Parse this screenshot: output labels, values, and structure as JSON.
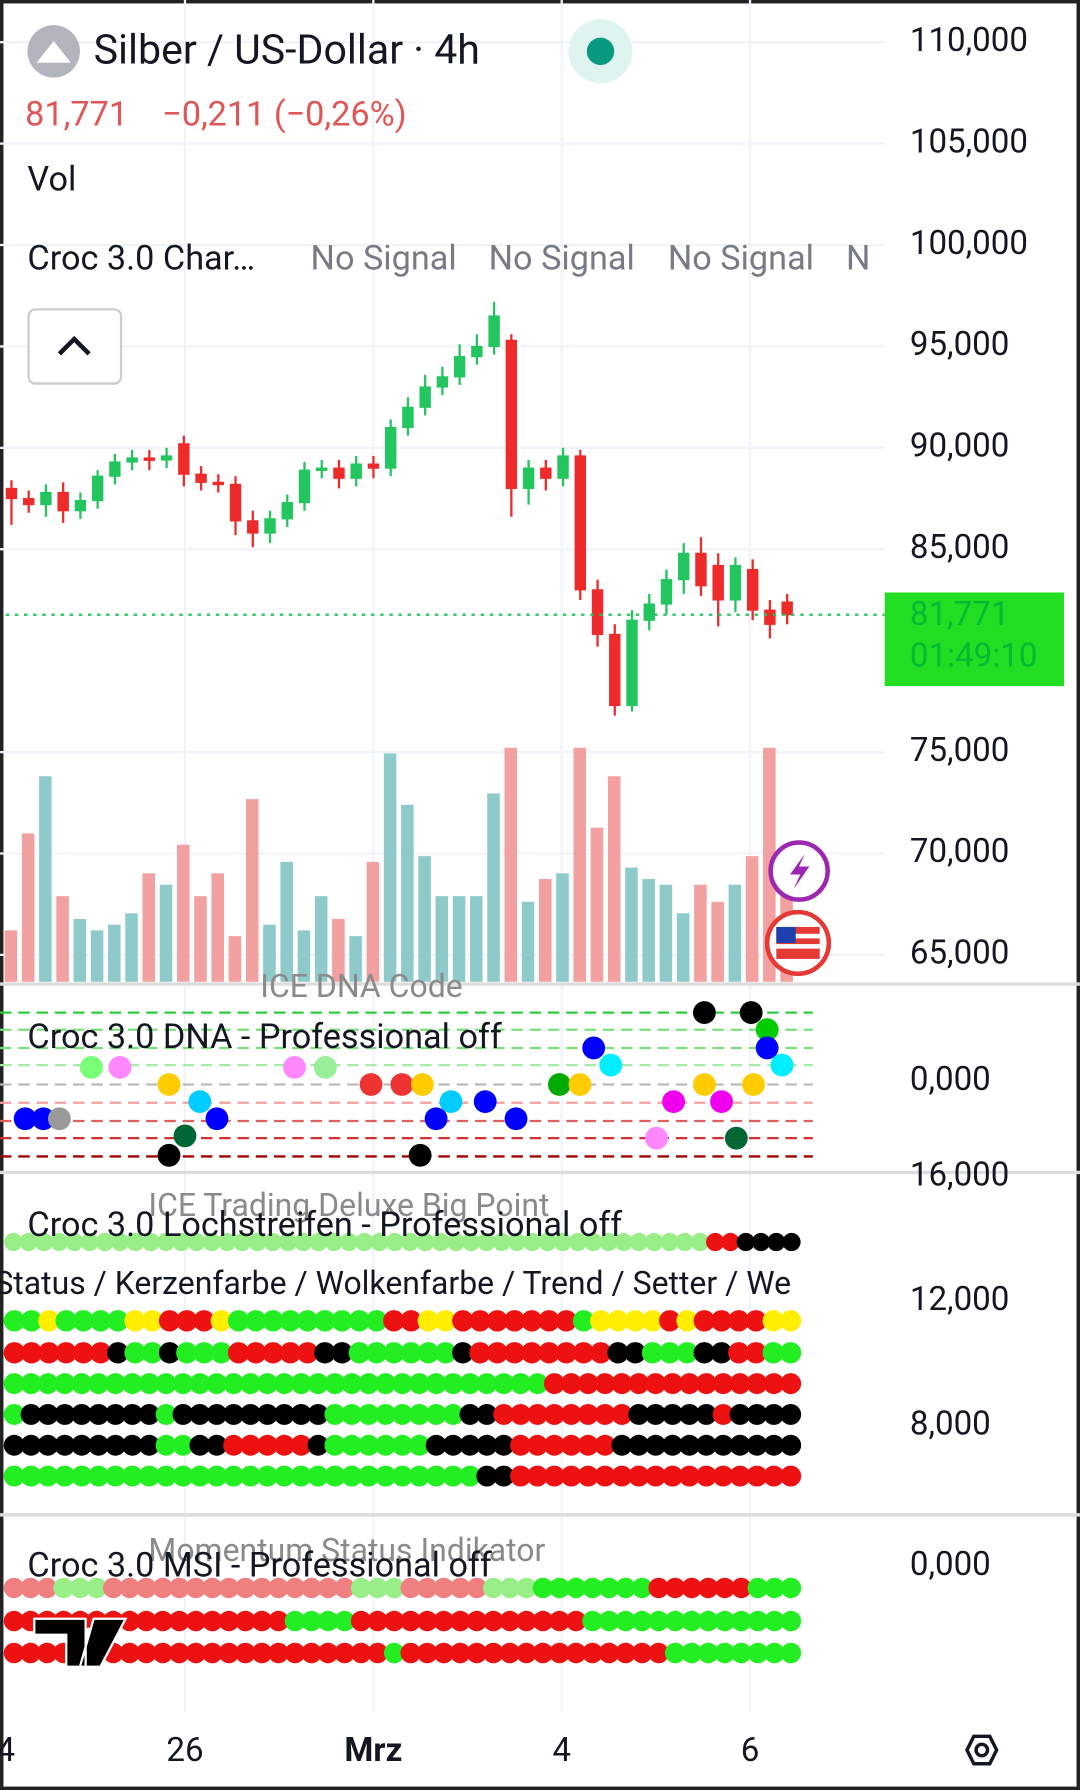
{
  "header": {
    "title": "Silber / US-Dollar · 4h",
    "price": "81,771",
    "change": "−0,211 (−0,26%)",
    "volume_label": "Vol",
    "indicator": "Croc 3.0 Char…",
    "signals": [
      "No Signal",
      "No Signal",
      "No Signal",
      "N"
    ]
  },
  "chart_data": {
    "type": "candlestick",
    "open": [
      88.0,
      87.5,
      87.2,
      87.8,
      86.9,
      87.4,
      88.6,
      89.3,
      89.5,
      89.4,
      90.2,
      88.7,
      88.3,
      88.2,
      86.4,
      85.8,
      86.5,
      87.3,
      88.9,
      89.0,
      88.5,
      89.2,
      89.0,
      91.0,
      92.0,
      93.0,
      93.5,
      94.5,
      95.0,
      95.3,
      88.0,
      89.0,
      88.5,
      89.6,
      83.0,
      80.8,
      77.3,
      81.5,
      82.3,
      83.5,
      84.8,
      84.2,
      82.5,
      84.0,
      82.0,
      82.4
    ],
    "high": [
      88.4,
      87.9,
      88.2,
      88.3,
      87.8,
      88.9,
      89.7,
      89.9,
      89.9,
      90.0,
      90.6,
      89.1,
      88.7,
      88.6,
      86.9,
      86.9,
      87.7,
      89.3,
      89.4,
      89.4,
      89.6,
      89.6,
      91.4,
      92.5,
      93.6,
      94.0,
      95.1,
      95.6,
      97.2,
      95.6,
      89.4,
      89.4,
      90.0,
      89.9,
      83.5,
      81.3,
      82.0,
      82.8,
      84.0,
      85.3,
      85.6,
      84.8,
      84.6,
      84.5,
      82.5,
      82.8
    ],
    "low": [
      86.2,
      86.8,
      86.6,
      86.3,
      86.5,
      87.0,
      88.2,
      88.9,
      88.9,
      89.0,
      88.1,
      87.9,
      87.8,
      85.7,
      85.1,
      85.3,
      86.1,
      86.9,
      88.5,
      88.0,
      88.1,
      88.5,
      88.6,
      90.6,
      91.6,
      92.6,
      93.1,
      94.1,
      94.6,
      86.6,
      87.2,
      87.9,
      88.1,
      82.5,
      80.2,
      76.8,
      77.0,
      81.0,
      81.8,
      82.8,
      82.7,
      81.2,
      81.9,
      81.5,
      80.6,
      81.3
    ],
    "close": [
      87.5,
      87.2,
      87.8,
      86.9,
      87.4,
      88.6,
      89.3,
      89.5,
      89.4,
      89.6,
      88.7,
      88.3,
      88.2,
      86.4,
      85.8,
      86.5,
      87.3,
      88.9,
      89.0,
      88.5,
      89.2,
      89.0,
      91.0,
      92.0,
      93.0,
      93.5,
      94.5,
      95.0,
      96.5,
      88.0,
      89.0,
      88.5,
      89.6,
      83.0,
      80.8,
      77.3,
      81.5,
      82.3,
      83.5,
      84.8,
      83.2,
      82.5,
      84.2,
      82.0,
      81.3,
      81.771
    ],
    "volume": [
      45,
      130,
      180,
      75,
      55,
      45,
      50,
      60,
      95,
      85,
      120,
      75,
      95,
      40,
      160,
      50,
      105,
      45,
      75,
      55,
      40,
      105,
      200,
      155,
      110,
      75,
      75,
      75,
      165,
      205,
      70,
      90,
      95,
      205,
      135,
      180,
      100,
      90,
      85,
      60,
      85,
      70,
      85,
      110,
      205,
      90
    ],
    "up_color": "#22c55e",
    "down_color": "#ef2a2a",
    "volume_up_color": "#8fcaca",
    "volume_down_color": "#f2a0a0",
    "ylim": [
      61.65,
      112.08
    ],
    "yticks": [
      {
        "value": 110,
        "label": "110,000"
      },
      {
        "value": 105,
        "label": "105,000"
      },
      {
        "value": 100,
        "label": "100,000"
      },
      {
        "value": 95,
        "label": "95,000"
      },
      {
        "value": 90,
        "label": "90,000"
      },
      {
        "value": 85,
        "label": "85,000"
      },
      {
        "value": 75,
        "label": "75,000"
      },
      {
        "value": 70,
        "label": "70,000"
      },
      {
        "value": 65,
        "label": "65,000"
      }
    ],
    "last": {
      "value": 81.771,
      "label": "81,771",
      "countdown": "01:49:10"
    },
    "x_labels": [
      "4",
      "26",
      "Mrz",
      "4",
      "6"
    ]
  },
  "panels": {
    "dna": {
      "title": "ICE DNA Code",
      "name": "Croc 3.0 DNA - Professional off",
      "axis": "0,000"
    },
    "lochstreifen": {
      "axis_top": "16,000",
      "title": "ICE Trading Deluxe Big Point",
      "name": "Croc 3.0 Lochstreifen - Professional off",
      "rows_label": "Status / Kerzenfarbe / Wolkenfarbe / Trend / Setter / We",
      "axis": [
        "12,000",
        "8,000"
      ]
    },
    "msi": {
      "title": "Momentum Status Indikator",
      "name": "Croc 3.0 MSI - Professional off",
      "axis": "0,000"
    }
  }
}
